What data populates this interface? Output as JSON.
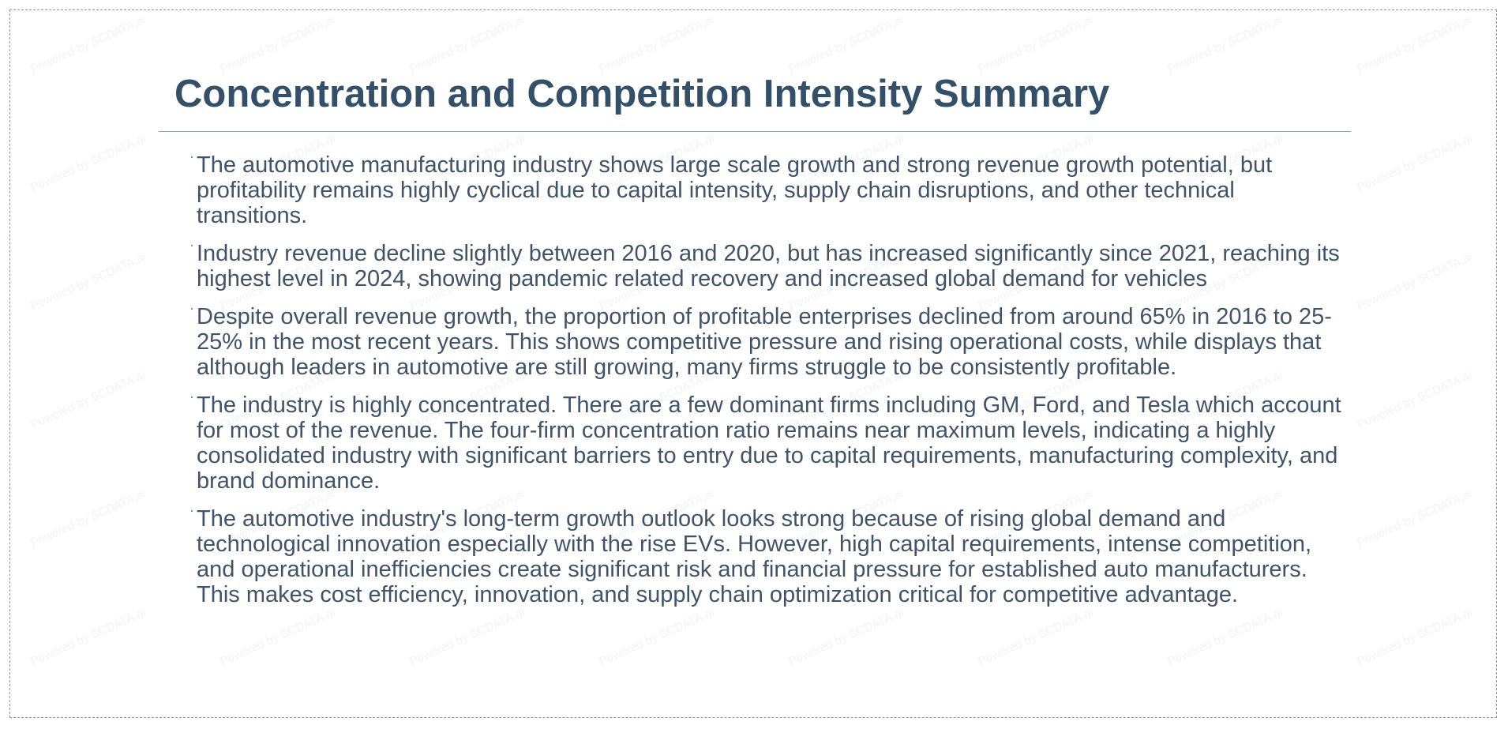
{
  "page": {
    "title": "Concentration and Competition Intensity Summary",
    "watermark_text": "Powered by SCDATA.ai"
  },
  "bullets": [
    {
      "text": "The automotive manufacturing industry shows large scale growth and strong revenue growth potential, but profitability remains highly cyclical due to capital intensity, supply chain disruptions, and other technical transitions."
    },
    {
      "text": "Industry revenue decline slightly between 2016 and 2020, but has increased significantly since 2021, reaching its highest level in 2024, showing pandemic related recovery and increased global demand for vehicles"
    },
    {
      "text": "Despite overall revenue growth, the proportion of profitable enterprises declined from around 65% in 2016 to 25-25% in the most recent years. This shows competitive pressure and rising operational costs, while displays that although leaders in automotive are still growing, many firms struggle to be consistently profitable."
    },
    {
      "text": "The industry is highly concentrated. There are a few dominant firms including GM, Ford, and Tesla which account for most of the revenue. The four-firm concentration ratio remains near maximum levels, indicating a highly consolidated industry with significant barriers to entry due to capital requirements, manufacturing complexity, and brand dominance."
    },
    {
      "text": "The automotive industry's long-term growth outlook looks strong because of rising global demand and technological innovation especially with the rise EVs. However, high capital requirements, intense competition, and operational inefficiencies create significant risk and financial pressure for established auto manufacturers. This makes cost efficiency, innovation, and supply chain optimization critical for competitive advantage."
    }
  ]
}
